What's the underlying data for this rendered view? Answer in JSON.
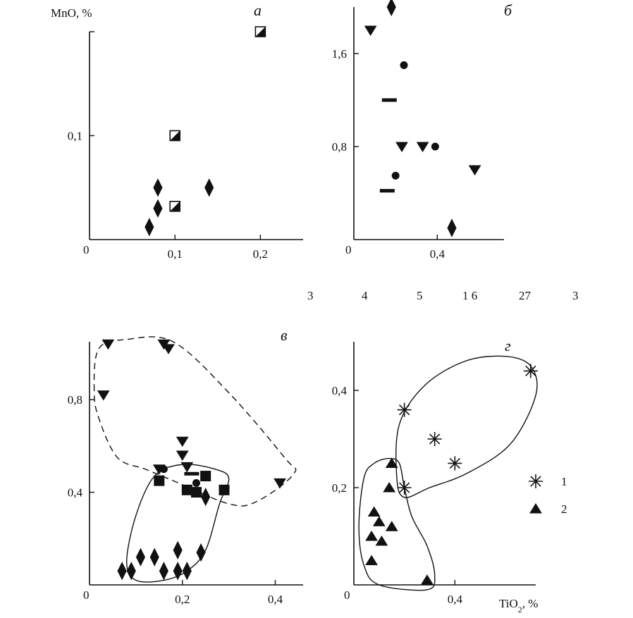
{
  "y_title": "MnO, %",
  "x_title": "TiO2, %",
  "stray_numbers": [
    "3",
    "4",
    "5",
    "1 6",
    "27",
    "3"
  ],
  "legend": [
    {
      "symbol": "asterisk-icon",
      "label": "1"
    },
    {
      "symbol": "triangle-up-icon",
      "label": "2"
    }
  ],
  "chart_data": [
    {
      "type": "scatter",
      "panel_label": "а",
      "origin_label": "0",
      "xticks": [
        "0,1",
        "0,2"
      ],
      "yticks": [
        "0,1"
      ],
      "xlim": [
        0,
        0.25
      ],
      "ylim": [
        0,
        0.2
      ],
      "series": [
        {
          "symbol": "diamond",
          "points": [
            [
              0.07,
              0.012
            ],
            [
              0.08,
              0.03
            ],
            [
              0.08,
              0.05
            ],
            [
              0.14,
              0.05
            ]
          ]
        },
        {
          "symbol": "half-square",
          "points": [
            [
              0.1,
              0.032
            ],
            [
              0.1,
              0.1
            ],
            [
              0.2,
              0.2
            ]
          ]
        }
      ]
    },
    {
      "type": "scatter",
      "panel_label": "б",
      "origin_label": "0",
      "xticks": [
        "0,4"
      ],
      "yticks": [
        "0,8",
        "1,6"
      ],
      "xlim": [
        0,
        0.72
      ],
      "ylim": [
        0,
        2.0
      ],
      "series": [
        {
          "symbol": "diamond",
          "points": [
            [
              0.18,
              2.0
            ],
            [
              0.47,
              0.1
            ]
          ]
        },
        {
          "symbol": "triangle-down",
          "points": [
            [
              0.08,
              1.8
            ],
            [
              0.23,
              0.8
            ],
            [
              0.33,
              0.8
            ],
            [
              0.58,
              0.6
            ]
          ]
        },
        {
          "symbol": "circle",
          "points": [
            [
              0.24,
              1.5
            ],
            [
              0.39,
              0.8
            ],
            [
              0.2,
              0.55
            ]
          ]
        },
        {
          "symbol": "dash",
          "points": [
            [
              0.17,
              1.2
            ],
            [
              0.16,
              0.42
            ]
          ]
        }
      ]
    },
    {
      "type": "scatter",
      "panel_label": "в",
      "origin_label": "0",
      "xticks": [
        "0,2",
        "0,4"
      ],
      "yticks": [
        "0,4",
        "0,8"
      ],
      "xlim": [
        0,
        0.46
      ],
      "ylim": [
        0,
        1.05
      ],
      "series": [
        {
          "symbol": "triangle-down",
          "points": [
            [
              0.04,
              1.04
            ],
            [
              0.16,
              1.04
            ],
            [
              0.17,
              1.02
            ],
            [
              0.03,
              0.82
            ],
            [
              0.15,
              0.5
            ],
            [
              0.21,
              0.51
            ],
            [
              0.2,
              0.56
            ],
            [
              0.2,
              0.62
            ],
            [
              0.41,
              0.44
            ]
          ]
        },
        {
          "symbol": "circle",
          "points": [
            [
              0.16,
              0.5
            ],
            [
              0.23,
              0.44
            ]
          ]
        },
        {
          "symbol": "square",
          "points": [
            [
              0.15,
              0.45
            ],
            [
              0.25,
              0.47
            ],
            [
              0.21,
              0.41
            ],
            [
              0.23,
              0.4
            ],
            [
              0.29,
              0.41
            ]
          ]
        },
        {
          "symbol": "dash",
          "points": [
            [
              0.22,
              0.48
            ]
          ]
        },
        {
          "symbol": "diamond",
          "points": [
            [
              0.25,
              0.38
            ],
            [
              0.07,
              0.06
            ],
            [
              0.09,
              0.06
            ],
            [
              0.11,
              0.12
            ],
            [
              0.14,
              0.12
            ],
            [
              0.16,
              0.06
            ],
            [
              0.19,
              0.06
            ],
            [
              0.21,
              0.06
            ],
            [
              0.19,
              0.15
            ],
            [
              0.24,
              0.14
            ]
          ]
        }
      ],
      "outlines": [
        {
          "style": "dashed",
          "points": [
            [
              0.01,
              0.84
            ],
            [
              0.02,
              1.02
            ],
            [
              0.08,
              1.06
            ],
            [
              0.18,
              1.05
            ],
            [
              0.3,
              0.83
            ],
            [
              0.42,
              0.55
            ],
            [
              0.44,
              0.48
            ],
            [
              0.36,
              0.36
            ],
            [
              0.3,
              0.35
            ],
            [
              0.18,
              0.45
            ],
            [
              0.12,
              0.5
            ],
            [
              0.06,
              0.55
            ],
            [
              0.02,
              0.72
            ]
          ]
        },
        {
          "style": "solid",
          "points": [
            [
              0.08,
              0.1
            ],
            [
              0.1,
              0.3
            ],
            [
              0.14,
              0.47
            ],
            [
              0.2,
              0.52
            ],
            [
              0.27,
              0.5
            ],
            [
              0.3,
              0.46
            ],
            [
              0.28,
              0.35
            ],
            [
              0.25,
              0.15
            ],
            [
              0.21,
              0.06
            ],
            [
              0.16,
              0.02
            ],
            [
              0.1,
              0.02
            ]
          ]
        }
      ]
    },
    {
      "type": "scatter",
      "panel_label": "г",
      "origin_label": "0",
      "xticks": [
        "0,4"
      ],
      "yticks": [
        "0,2",
        "0,4"
      ],
      "xlim": [
        0,
        0.72
      ],
      "ylim": [
        0,
        0.5
      ],
      "series": [
        {
          "name": "1",
          "symbol": "asterisk",
          "points": [
            [
              0.2,
              0.36
            ],
            [
              0.32,
              0.3
            ],
            [
              0.4,
              0.25
            ],
            [
              0.2,
              0.2
            ],
            [
              0.7,
              0.44
            ]
          ]
        },
        {
          "name": "2",
          "symbol": "triangle-up",
          "points": [
            [
              0.15,
              0.25
            ],
            [
              0.14,
              0.2
            ],
            [
              0.08,
              0.15
            ],
            [
              0.1,
              0.13
            ],
            [
              0.15,
              0.12
            ],
            [
              0.07,
              0.1
            ],
            [
              0.11,
              0.09
            ],
            [
              0.07,
              0.05
            ],
            [
              0.29,
              0.01
            ]
          ]
        }
      ],
      "outlines": [
        {
          "style": "solid",
          "points": [
            [
              0.17,
              0.22
            ],
            [
              0.18,
              0.33
            ],
            [
              0.28,
              0.41
            ],
            [
              0.44,
              0.46
            ],
            [
              0.6,
              0.47
            ],
            [
              0.7,
              0.45
            ],
            [
              0.72,
              0.39
            ],
            [
              0.62,
              0.29
            ],
            [
              0.45,
              0.23
            ],
            [
              0.3,
              0.2
            ],
            [
              0.2,
              0.18
            ]
          ]
        },
        {
          "style": "solid",
          "points": [
            [
              0.04,
              0.22
            ],
            [
              0.02,
              0.12
            ],
            [
              0.04,
              0.04
            ],
            [
              0.1,
              0.0
            ],
            [
              0.29,
              -0.01
            ],
            [
              0.32,
              0.02
            ],
            [
              0.29,
              0.08
            ],
            [
              0.23,
              0.14
            ],
            [
              0.2,
              0.2
            ],
            [
              0.18,
              0.25
            ],
            [
              0.14,
              0.26
            ],
            [
              0.08,
              0.25
            ]
          ]
        }
      ]
    }
  ]
}
